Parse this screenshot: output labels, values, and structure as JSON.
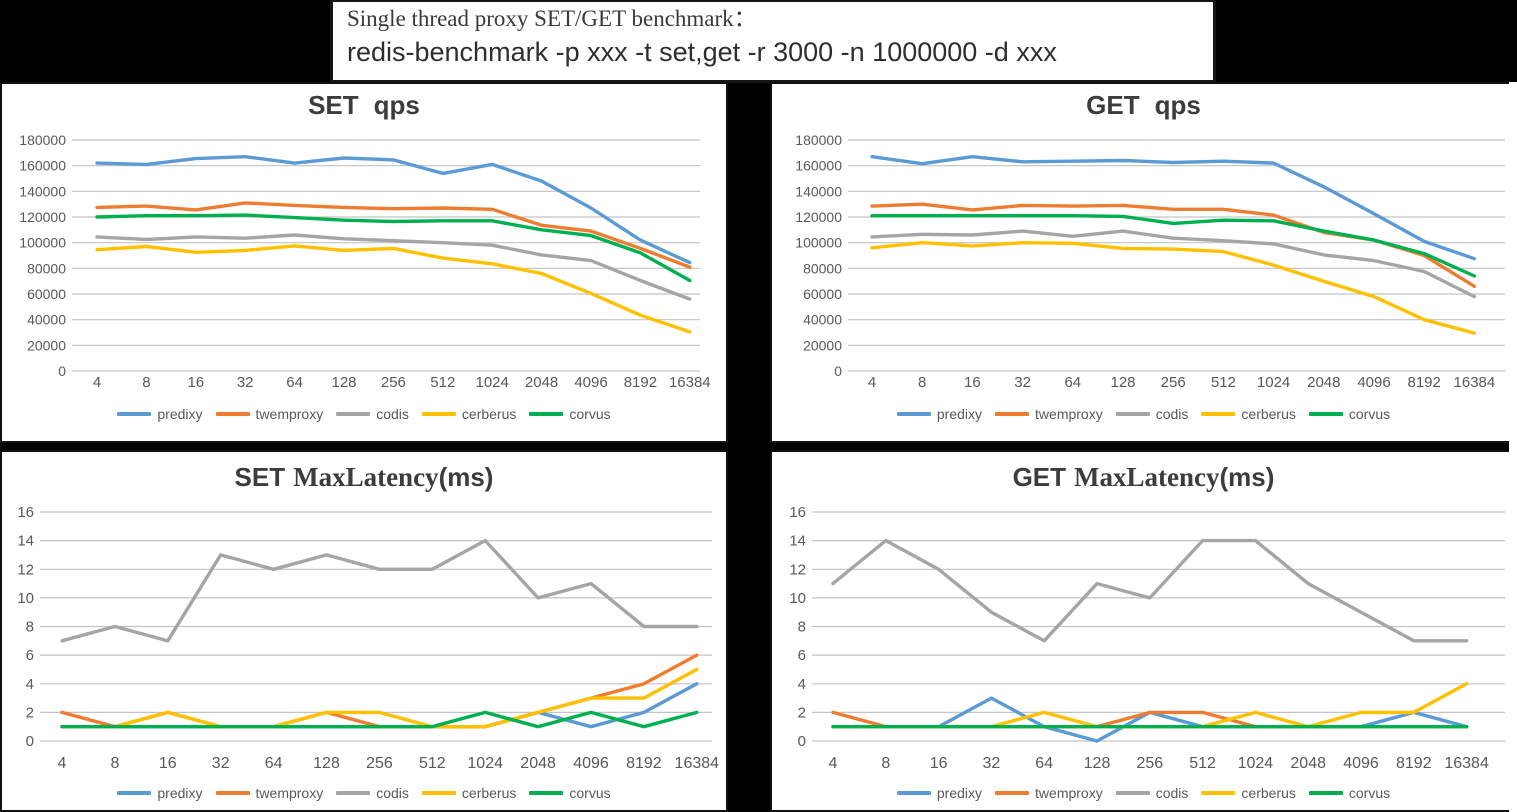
{
  "header": {
    "line1": "Single thread proxy SET/GET benchmark：",
    "line2": "redis-benchmark -p xxx -t set,get -r 3000 -n 1000000 -d xxx"
  },
  "colors": {
    "predixy": "#5B9BD5",
    "twemproxy": "#ED7D31",
    "codis": "#A5A5A5",
    "cerberus": "#FFC000",
    "corvus": "#00B050",
    "grid": "#C3C3C3",
    "tick_label": "#595959",
    "title_text": "#3c3c3c"
  },
  "chart_data": {
    "type": "line",
    "categories": [
      "4",
      "8",
      "16",
      "32",
      "64",
      "128",
      "256",
      "512",
      "1024",
      "2048",
      "4096",
      "8192",
      "16384"
    ],
    "legend": [
      "predixy",
      "twemproxy",
      "codis",
      "cerberus",
      "corvus"
    ],
    "legend_position": "bottom",
    "grid": true,
    "charts": [
      {
        "id": "set_qps",
        "title": "SET qps",
        "title_parts": {
          "t1": "SET",
          "t2": "",
          "t3": "qps"
        },
        "ylim": [
          0,
          180000
        ],
        "y_step": 20000,
        "series": [
          {
            "name": "predixy",
            "values": [
              162000,
              161000,
              165500,
              167000,
              162000,
              166000,
              164500,
              154000,
              161000,
              148000,
              127000,
              102000,
              84500
            ]
          },
          {
            "name": "twemproxy",
            "values": [
              127500,
              128500,
              125500,
              131000,
              129000,
              127500,
              126500,
              127000,
              126000,
              113500,
              109000,
              95500,
              81000
            ]
          },
          {
            "name": "codis",
            "values": [
              104500,
              102500,
              104500,
              103500,
              106000,
              103000,
              101500,
              100000,
              98000,
              90500,
              86000,
              70500,
              56000
            ]
          },
          {
            "name": "cerberus",
            "values": [
              94500,
              97000,
              92500,
              94000,
              97500,
              94000,
              95500,
              88000,
              83500,
              76000,
              60500,
              43500,
              30500
            ]
          },
          {
            "name": "corvus",
            "values": [
              120000,
              121000,
              121000,
              121500,
              119500,
              117500,
              116500,
              117000,
              117000,
              110000,
              105500,
              92000,
              70500
            ]
          }
        ]
      },
      {
        "id": "get_qps",
        "title": "GET qps",
        "title_parts": {
          "t1": "GET",
          "t2": "",
          "t3": "qps"
        },
        "ylim": [
          0,
          180000
        ],
        "y_step": 20000,
        "series": [
          {
            "name": "predixy",
            "values": [
              167000,
              161500,
              167000,
              163000,
              163500,
              164000,
              162500,
              163500,
              162000,
              143500,
              122500,
              101000,
              87500
            ]
          },
          {
            "name": "twemproxy",
            "values": [
              128500,
              130000,
              125500,
              129000,
              128500,
              129000,
              126000,
              126000,
              121500,
              108000,
              102000,
              90000,
              66000
            ]
          },
          {
            "name": "codis",
            "values": [
              104500,
              106500,
              106000,
              109000,
              105000,
              109000,
              103500,
              101500,
              99000,
              90500,
              86000,
              77500,
              58000
            ]
          },
          {
            "name": "cerberus",
            "values": [
              96000,
              100000,
              97500,
              100000,
              99500,
              95500,
              95000,
              93000,
              82500,
              70000,
              58000,
              40000,
              29500
            ]
          },
          {
            "name": "corvus",
            "values": [
              121000,
              121000,
              121000,
              121000,
              121000,
              120500,
              115000,
              117500,
              117000,
              109000,
              102000,
              91500,
              74000
            ]
          }
        ]
      },
      {
        "id": "set_latency",
        "title": "SET MaxLatency(ms)",
        "title_parts": {
          "t1": "SET",
          "t2": "MaxLatency",
          "t3": "(ms)"
        },
        "ylim": [
          0,
          16
        ],
        "y_step": 2,
        "series": [
          {
            "name": "predixy",
            "values": [
              1,
              1,
              1,
              1,
              1,
              1,
              1,
              1,
              1,
              2,
              1,
              2,
              4
            ]
          },
          {
            "name": "twemproxy",
            "values": [
              2,
              1,
              2,
              1,
              1,
              2,
              1,
              1,
              1,
              2,
              3,
              4,
              6
            ]
          },
          {
            "name": "codis",
            "values": [
              7,
              8,
              7,
              13,
              12,
              13,
              12,
              12,
              14,
              10,
              11,
              8,
              8
            ]
          },
          {
            "name": "cerberus",
            "values": [
              1,
              1,
              2,
              1,
              1,
              2,
              2,
              1,
              1,
              2,
              3,
              3,
              5
            ]
          },
          {
            "name": "corvus",
            "values": [
              1,
              1,
              1,
              1,
              1,
              1,
              1,
              1,
              2,
              1,
              2,
              1,
              2
            ]
          }
        ]
      },
      {
        "id": "get_latency",
        "title": "GET MaxLatency(ms)",
        "title_parts": {
          "t1": "GET",
          "t2": "MaxLatency",
          "t3": "(ms)"
        },
        "ylim": [
          0,
          16
        ],
        "y_step": 2,
        "series": [
          {
            "name": "predixy",
            "values": [
              1,
              1,
              1,
              3,
              1,
              0,
              2,
              1,
              1,
              1,
              1,
              2,
              1
            ]
          },
          {
            "name": "twemproxy",
            "values": [
              2,
              1,
              1,
              1,
              1,
              1,
              2,
              2,
              1,
              1,
              1,
              1,
              1
            ]
          },
          {
            "name": "codis",
            "values": [
              11,
              14,
              12,
              9,
              7,
              11,
              10,
              14,
              14,
              11,
              9,
              7,
              7
            ]
          },
          {
            "name": "cerberus",
            "values": [
              1,
              1,
              1,
              1,
              2,
              1,
              1,
              1,
              2,
              1,
              2,
              2,
              4
            ]
          },
          {
            "name": "corvus",
            "values": [
              1,
              1,
              1,
              1,
              1,
              1,
              1,
              1,
              1,
              1,
              1,
              1,
              1
            ]
          }
        ]
      }
    ]
  }
}
